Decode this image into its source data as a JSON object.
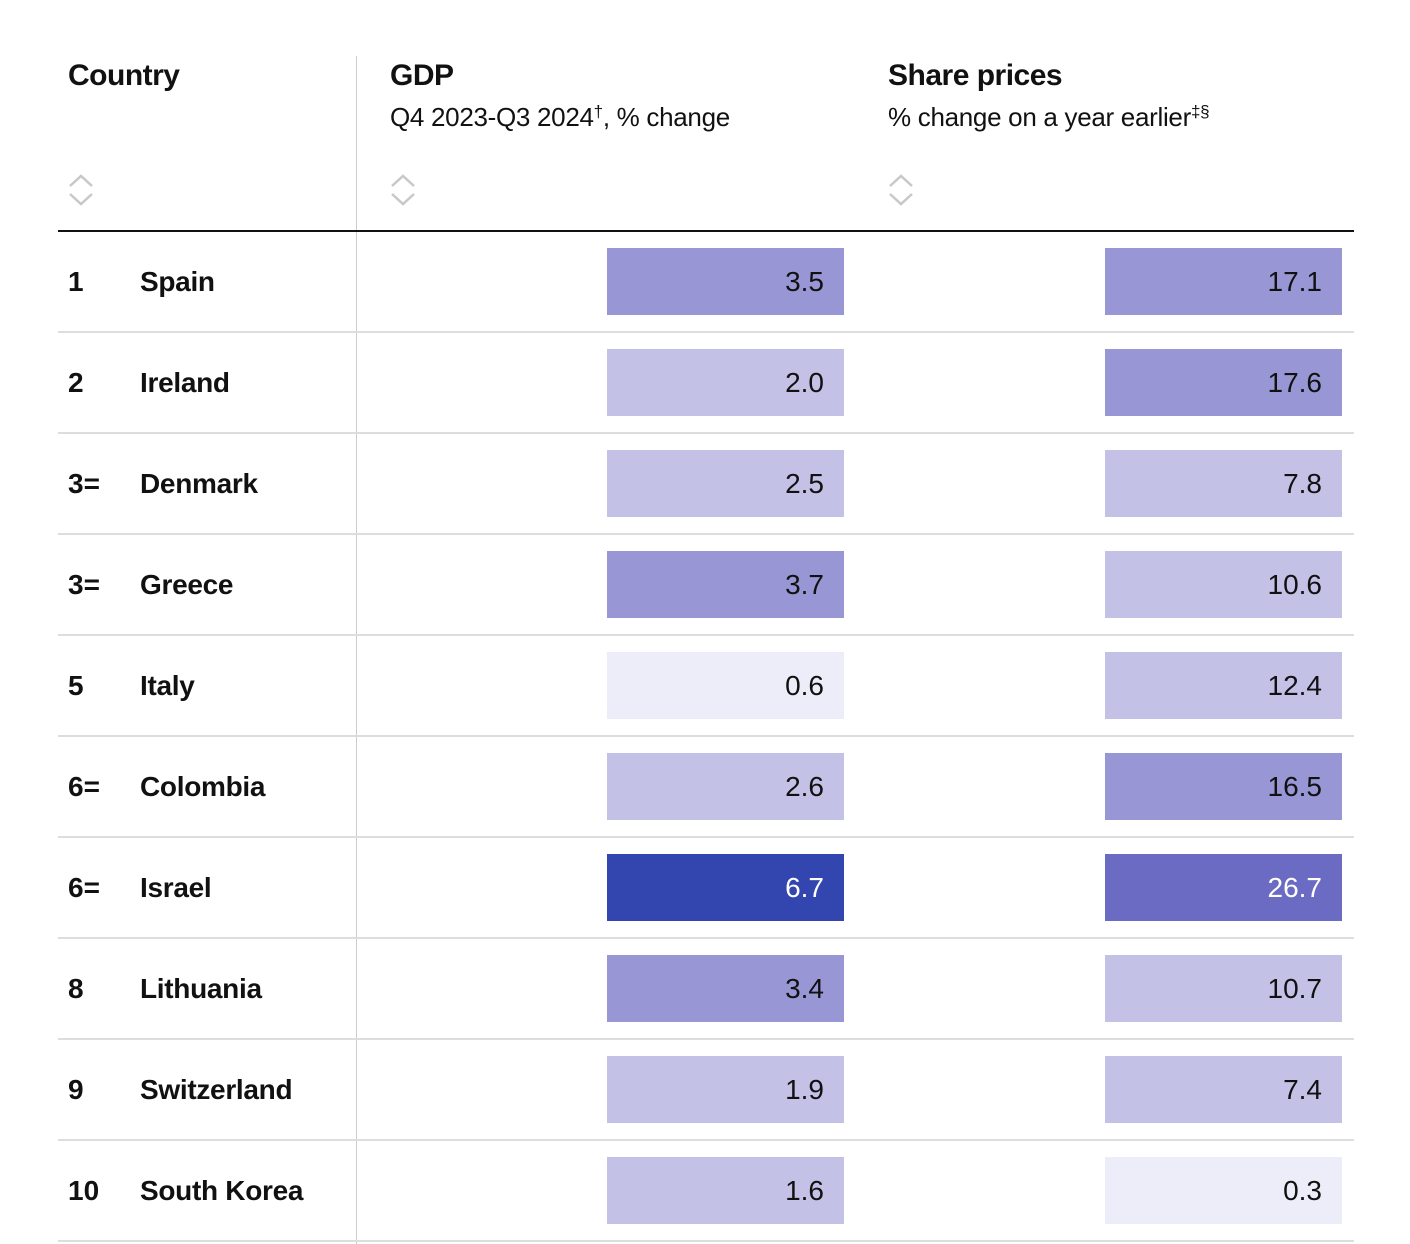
{
  "columns": {
    "country": {
      "title": "Country"
    },
    "gdp": {
      "title": "GDP",
      "subtitle": "Q4 2023-Q3 2024",
      "subtitle_sup": "†",
      "subtitle_tail": ", % change"
    },
    "share": {
      "title": "Share prices",
      "subtitle": "% change on a year earlier",
      "subtitle_sup": "‡§"
    }
  },
  "icons": {
    "sort": "sort-updown-icon"
  },
  "colors": {
    "level1": "#ecedf8",
    "level2": "#c3c1e6",
    "level3": "#9996d6",
    "level4": "#6c6bc4",
    "level5": "#3346b0",
    "divider": "#dddddd",
    "header_rule": "#111111"
  },
  "rows": [
    {
      "rank": "1",
      "country": "Spain",
      "gdp": "3.5",
      "gdp_level": 3,
      "share": "17.1",
      "share_level": 3
    },
    {
      "rank": "2",
      "country": "Ireland",
      "gdp": "2.0",
      "gdp_level": 2,
      "share": "17.6",
      "share_level": 3
    },
    {
      "rank": "3=",
      "country": "Denmark",
      "gdp": "2.5",
      "gdp_level": 2,
      "share": "7.8",
      "share_level": 2
    },
    {
      "rank": "3=",
      "country": "Greece",
      "gdp": "3.7",
      "gdp_level": 3,
      "share": "10.6",
      "share_level": 2
    },
    {
      "rank": "5",
      "country": "Italy",
      "gdp": "0.6",
      "gdp_level": 1,
      "share": "12.4",
      "share_level": 2
    },
    {
      "rank": "6=",
      "country": "Colombia",
      "gdp": "2.6",
      "gdp_level": 2,
      "share": "16.5",
      "share_level": 3
    },
    {
      "rank": "6=",
      "country": "Israel",
      "gdp": "6.7",
      "gdp_level": 5,
      "share": "26.7",
      "share_level": 4
    },
    {
      "rank": "8",
      "country": "Lithuania",
      "gdp": "3.4",
      "gdp_level": 3,
      "share": "10.7",
      "share_level": 2
    },
    {
      "rank": "9",
      "country": "Switzerland",
      "gdp": "1.9",
      "gdp_level": 2,
      "share": "7.4",
      "share_level": 2
    },
    {
      "rank": "10",
      "country": "South Korea",
      "gdp": "1.6",
      "gdp_level": 2,
      "share": "0.3",
      "share_level": 1
    }
  ]
}
